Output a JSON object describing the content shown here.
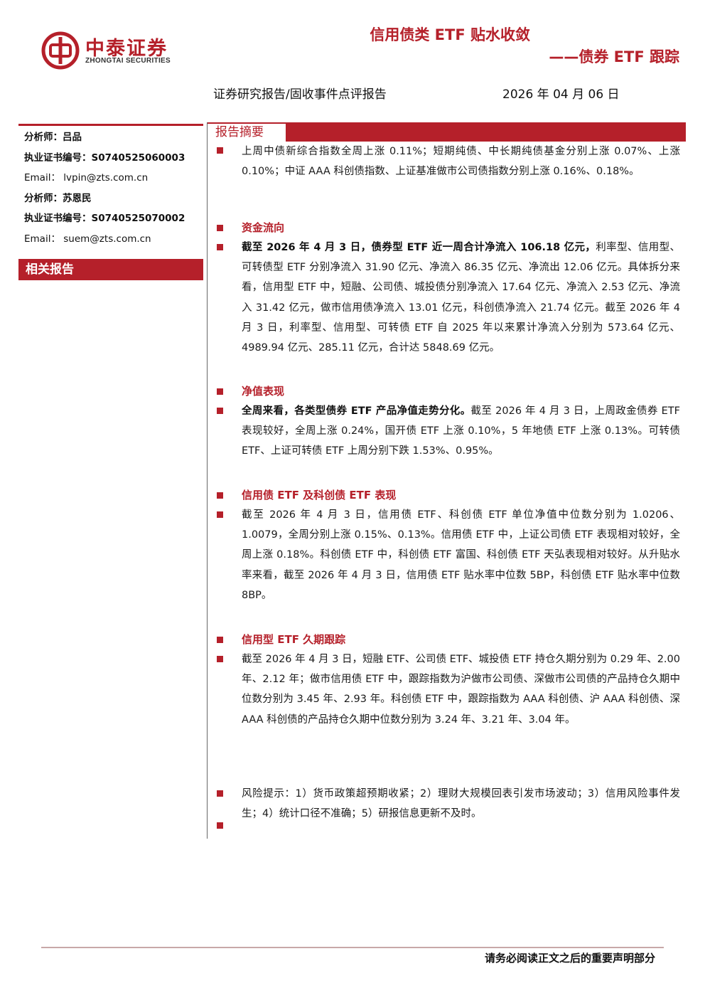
{
  "brand": {
    "name_cn": "中泰证券",
    "name_en": "ZHONGTAI SECURITIES",
    "color": "#b5202a"
  },
  "header": {
    "title": "信用债类 ETF 贴水收敛",
    "subtitle": "——债券 ETF 跟踪",
    "report_type": "证券研究报告/固收事件点评报告",
    "date": "2026 年 04 月 06 日"
  },
  "sidebar": {
    "analysts": [
      {
        "label": "分析师：",
        "value": "吕品"
      },
      {
        "label": "执业证书编号：",
        "value": "S0740525060003"
      },
      {
        "label": "Email：",
        "value": "lvpin@zts.com.cn"
      },
      {
        "label": "分析师：",
        "value": "苏恩民"
      },
      {
        "label": "执业证书编号：",
        "value": "S0740525070002"
      },
      {
        "label": "Email：",
        "value": "suem@zts.com.cn"
      }
    ],
    "related_reports_label": "相关报告"
  },
  "abstract": {
    "label": "报告摘要",
    "intro": "上周中债新综合指数全周上涨 0.11%；短期纯债、中长期纯债基金分别上涨 0.07%、上涨 0.10%；中证 AAA 科创债指数、上证基准做市公司债指数分别上涨 0.16%、0.18%。",
    "sections": [
      {
        "heading": "资金流向",
        "lead": "截至 2026 年 4 月 3 日，债券型 ETF 近一周合计净流入 106.18 亿元，",
        "body": "利率型、信用型、可转债型 ETF 分别净流入 31.90 亿元、净流入 86.35 亿元、净流出 12.06 亿元。具体拆分来看，信用型 ETF 中，短融、公司债、城投债分别净流入 17.64 亿元、净流入 2.53 亿元、净流入 31.42 亿元，做市信用债净流入 13.01 亿元，科创债净流入 21.74 亿元。截至 2026 年 4 月 3 日，利率型、信用型、可转债 ETF 自 2025 年以来累计净流入分别为 573.64 亿元、4989.94 亿元、285.11 亿元，合计达 5848.69 亿元。"
      },
      {
        "heading": "净值表现",
        "lead": "全周来看，各类型债券 ETF 产品净值走势分化。",
        "body": "截至 2026 年 4 月 3 日，上周政金债券 ETF 表现较好，全周上涨 0.24%，国开债 ETF 上涨 0.10%，5 年地债 ETF 上涨 0.13%。可转债 ETF、上证可转债 ETF 上周分别下跌 1.53%、0.95%。"
      },
      {
        "heading": "信用债 ETF 及科创债 ETF 表现",
        "lead": "",
        "body": "截至 2026 年 4 月 3 日，信用债 ETF、科创债 ETF 单位净值中位数分别为 1.0206、1.0079，全周分别上涨 0.15%、0.13%。信用债 ETF 中，上证公司债 ETF 表现相对较好，全周上涨 0.18%。科创债 ETF 中，科创债 ETF 富国、科创债 ETF 天弘表现相对较好。从升贴水率来看，截至 2026 年 4 月 3 日，信用债 ETF 贴水率中位数 5BP，科创债 ETF 贴水率中位数 8BP。"
      },
      {
        "heading": "信用型 ETF 久期跟踪",
        "lead": "",
        "body": "截至 2026 年 4 月 3 日，短融 ETF、公司债 ETF、城投债 ETF 持仓久期分别为 0.29 年、2.00 年、2.12 年；做市信用债 ETF 中，跟踪指数为沪做市公司债、深做市公司债的产品持仓久期中位数分别为 3.45 年、2.93 年。科创债 ETF 中，跟踪指数为 AAA 科创债、沪 AAA 科创债、深 AAA 科创债的产品持仓久期中位数分别为 3.24 年、3.21 年、3.04 年。"
      }
    ],
    "risk": "风险提示：1）货币政策超预期收紧；2）理财大规模回表引发市场波动；3）信用风险事件发生；4）统计口径不准确；5）研报信息更新不及时。"
  },
  "footer": {
    "disclaimer": "请务必阅读正文之后的重要声明部分"
  }
}
